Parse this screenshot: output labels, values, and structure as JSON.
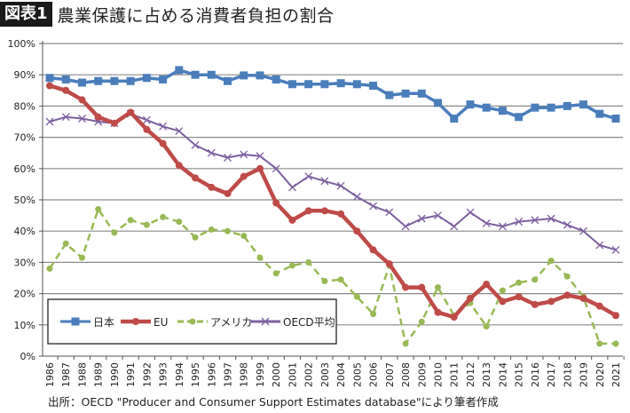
{
  "header": {
    "figure_label": "図表1",
    "title": "農業保護に占める消費者負担の割合"
  },
  "source": "出所：OECD \"Producer and Consumer Support Estimates database\"により筆者作成",
  "chart_data": {
    "type": "line",
    "title": "農業保護に占める消費者負担の割合",
    "xlabel": "",
    "ylabel": "",
    "ylim": [
      0,
      100
    ],
    "yticks": [
      "0%",
      "10%",
      "20%",
      "30%",
      "40%",
      "50%",
      "60%",
      "70%",
      "80%",
      "90%",
      "100%"
    ],
    "grid": true,
    "legend": "bottom-left",
    "x": [
      "1986",
      "1987",
      "1988",
      "1989",
      "1990",
      "1991",
      "1992",
      "1993",
      "1994",
      "1995",
      "1996",
      "1997",
      "1998",
      "1999",
      "2000",
      "2001",
      "2002",
      "2003",
      "2004",
      "2005",
      "2006",
      "2007",
      "2008",
      "2009",
      "2010",
      "2011",
      "2012",
      "2013",
      "2014",
      "2015",
      "2016",
      "2017",
      "2018",
      "2019",
      "2020",
      "2021"
    ],
    "series": [
      {
        "name": "日本",
        "color": "#4a7ebb",
        "marker": "square",
        "dash": "solid",
        "values": [
          89,
          88.5,
          87.5,
          88,
          88,
          88,
          89,
          88.5,
          91.5,
          90,
          90,
          88,
          89.8,
          89.8,
          88.5,
          87,
          87,
          87,
          87.3,
          87,
          86.5,
          83.5,
          84,
          84,
          81,
          76,
          80.5,
          79.5,
          78.5,
          76.5,
          79.5,
          79.5,
          80,
          80.5,
          77.5,
          76
        ]
      },
      {
        "name": "EU",
        "color": "#be4b48",
        "marker": "circle",
        "dash": "solid",
        "values": [
          86.5,
          85,
          82,
          76.5,
          74.5,
          78,
          72.5,
          68,
          61,
          57,
          54,
          52,
          57.5,
          60,
          49,
          43.5,
          46.5,
          46.5,
          45.5,
          40,
          34,
          29.5,
          22,
          22,
          14,
          12.5,
          18.5,
          23,
          17.5,
          19,
          16.5,
          17.5,
          19.5,
          18.5,
          16,
          13
        ]
      },
      {
        "name": "アメリカ",
        "color": "#98b954",
        "marker": "circle",
        "dash": "dashed",
        "values": [
          28,
          36,
          31.5,
          47,
          39.5,
          43.5,
          42,
          44.5,
          43,
          38,
          40.5,
          40,
          38.5,
          31.5,
          26.5,
          29,
          30,
          24,
          24.5,
          19,
          13.5,
          29,
          4,
          11,
          22,
          13,
          17,
          9.5,
          21,
          23.5,
          24.5,
          30.5,
          25.5,
          19,
          4,
          4
        ]
      },
      {
        "name": "OECD平均",
        "color": "#7d60a0",
        "marker": "x",
        "dash": "solid",
        "values": [
          75,
          76.5,
          76,
          75,
          74.5,
          77.5,
          75.5,
          73.5,
          72,
          67.5,
          65,
          63.5,
          64.5,
          64,
          60,
          54,
          57.5,
          56,
          54.5,
          51,
          48,
          46,
          41.5,
          44,
          45,
          41.5,
          46,
          42.5,
          41.5,
          43,
          43.5,
          44,
          42,
          40,
          35.5,
          34
        ]
      }
    ]
  }
}
